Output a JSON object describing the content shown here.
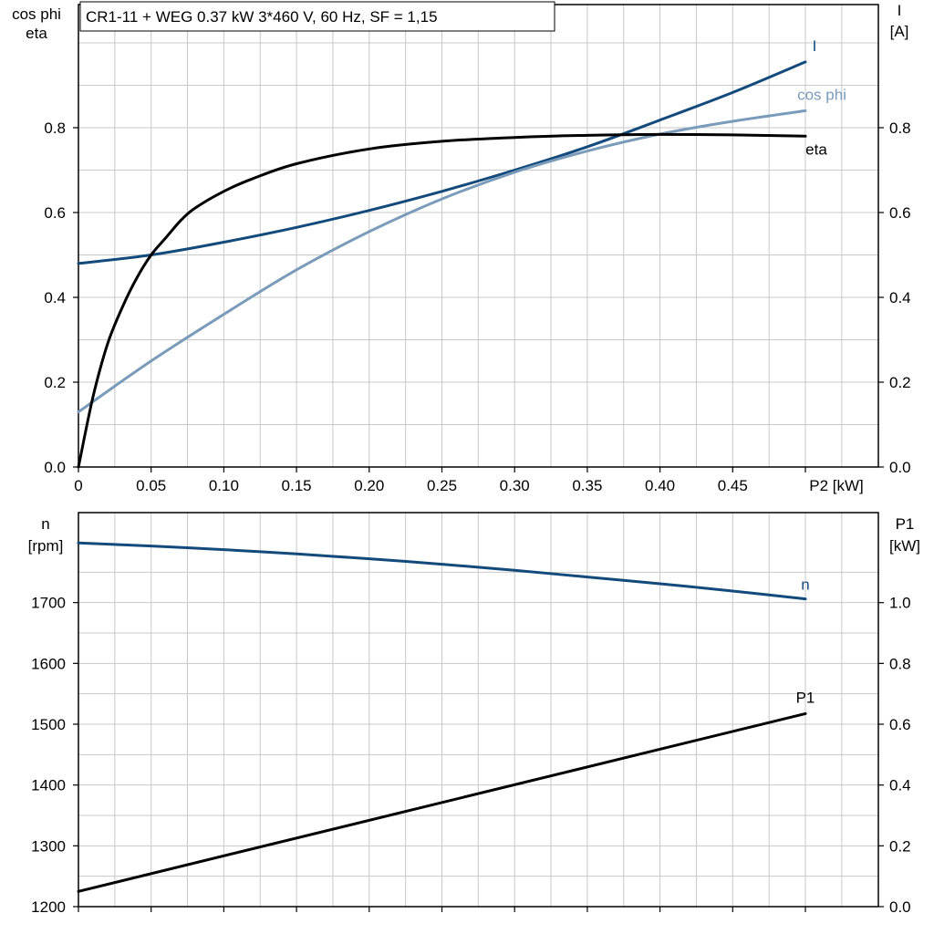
{
  "colors": {
    "I": "#134a7c",
    "cos_phi": "#7a9cba",
    "eta": "#000000",
    "n": "#134a7c",
    "P1": "#000000",
    "grid": "#c8c8c8"
  },
  "chart_data": [
    {
      "type": "line",
      "title": "CR1-11 + WEG   0.37 kW   3*460 V, 60 Hz, SF = 1,15",
      "xlabel": "P2 [kW]",
      "xlim": [
        0,
        0.55
      ],
      "xticks": [
        "0",
        "0.05",
        "0.10",
        "0.15",
        "0.20",
        "0.25",
        "0.30",
        "0.35",
        "0.40",
        "0.45"
      ],
      "xtick_values": [
        0,
        0.05,
        0.1,
        0.15,
        0.2,
        0.25,
        0.3,
        0.35,
        0.4,
        0.45
      ],
      "ylabel_left": [
        "cos phi",
        "eta"
      ],
      "ylim_left": [
        0,
        1.05
      ],
      "yticks_left": [
        "0.0",
        "0.2",
        "0.4",
        "0.6",
        "0.8"
      ],
      "ytick_values_left": [
        0,
        0.2,
        0.4,
        0.6,
        0.8
      ],
      "ylabel_right": [
        "I",
        "[A]"
      ],
      "ylim_right": [
        0,
        1.05
      ],
      "yticks_right": [
        "0.0",
        "0.2",
        "0.4",
        "0.6",
        "0.8"
      ],
      "ytick_values_right": [
        0,
        0.2,
        0.4,
        0.6,
        0.8
      ],
      "grid": true,
      "series": [
        {
          "name": "I",
          "axis": "right",
          "color_key": "I",
          "x": [
            0,
            0.05,
            0.1,
            0.15,
            0.2,
            0.25,
            0.3,
            0.35,
            0.4,
            0.45,
            0.5
          ],
          "y": [
            0.48,
            0.5,
            0.53,
            0.565,
            0.605,
            0.65,
            0.7,
            0.755,
            0.818,
            0.883,
            0.955
          ]
        },
        {
          "name": "cos phi",
          "axis": "left",
          "color_key": "cos_phi",
          "x": [
            0,
            0.05,
            0.1,
            0.15,
            0.2,
            0.25,
            0.3,
            0.35,
            0.4,
            0.45,
            0.5
          ],
          "y": [
            0.13,
            0.25,
            0.36,
            0.465,
            0.555,
            0.632,
            0.695,
            0.745,
            0.785,
            0.815,
            0.84
          ]
        },
        {
          "name": "eta",
          "axis": "left",
          "color_key": "eta",
          "x": [
            0,
            0.01,
            0.02,
            0.03,
            0.04,
            0.05,
            0.06,
            0.07,
            0.08,
            0.1,
            0.12,
            0.15,
            0.2,
            0.25,
            0.3,
            0.35,
            0.4,
            0.45,
            0.5
          ],
          "y": [
            0,
            0.165,
            0.29,
            0.375,
            0.445,
            0.5,
            0.54,
            0.58,
            0.61,
            0.65,
            0.68,
            0.715,
            0.75,
            0.768,
            0.777,
            0.782,
            0.784,
            0.783,
            0.78
          ]
        }
      ]
    },
    {
      "type": "line",
      "xlim": [
        0,
        0.55
      ],
      "ylabel_left": [
        "n",
        "[rpm]"
      ],
      "ylim_left": [
        1200,
        1800
      ],
      "yticks_left": [
        "1200",
        "1300",
        "1400",
        "1500",
        "1600",
        "1700"
      ],
      "ytick_values_left": [
        1200,
        1300,
        1400,
        1500,
        1600,
        1700
      ],
      "ylabel_right": [
        "P1",
        "[kW]"
      ],
      "ylim_right": [
        0,
        1.2
      ],
      "yticks_right": [
        "0.0",
        "0.2",
        "0.4",
        "0.6",
        "0.8",
        "1.0"
      ],
      "ytick_values_right": [
        0,
        0.2,
        0.4,
        0.6,
        0.8,
        1.0
      ],
      "grid": true,
      "series": [
        {
          "name": "n",
          "axis": "left",
          "color_key": "n",
          "x": [
            0,
            0.05,
            0.1,
            0.15,
            0.2,
            0.25,
            0.3,
            0.35,
            0.4,
            0.45,
            0.5
          ],
          "y": [
            1798,
            1793,
            1787,
            1780,
            1772,
            1763,
            1753,
            1742,
            1731,
            1719,
            1706
          ]
        },
        {
          "name": "P1",
          "axis": "right",
          "color_key": "P1",
          "x": [
            0,
            0.5
          ],
          "y": [
            0.05,
            0.635
          ]
        }
      ]
    }
  ]
}
